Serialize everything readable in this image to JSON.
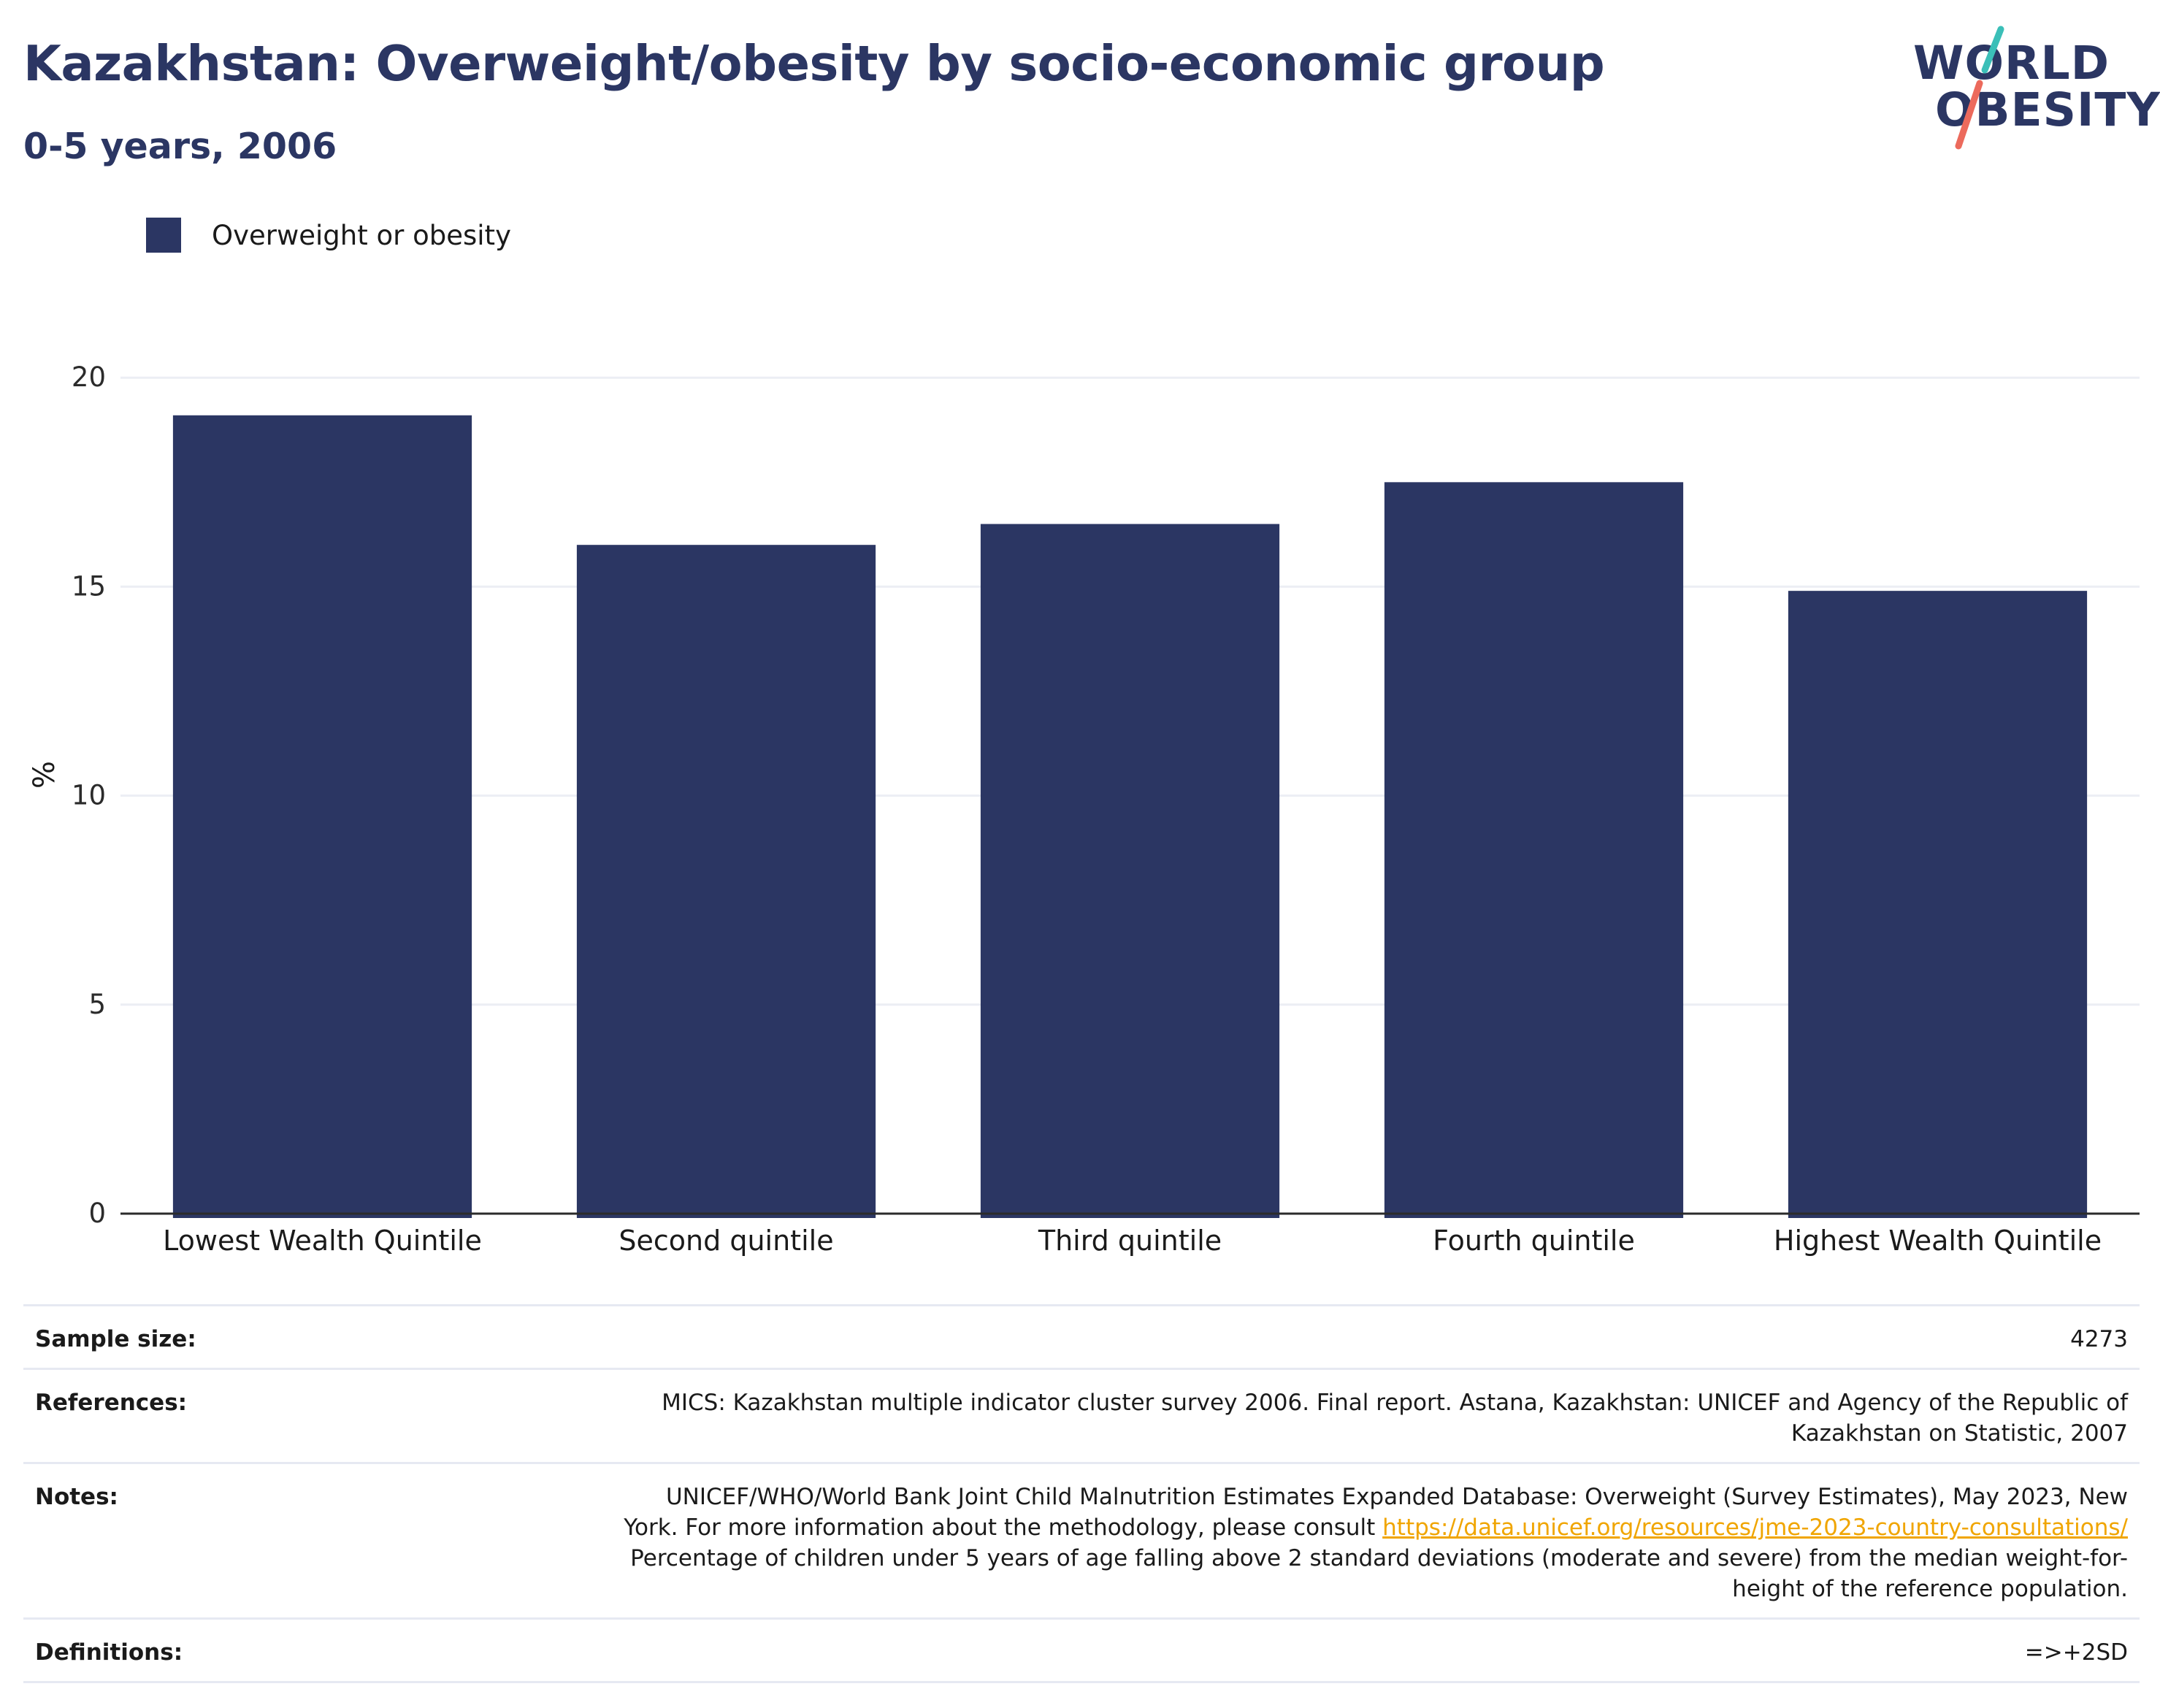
{
  "header": {
    "title": "Kazakhstan: Overweight/obesity by socio-economic group",
    "subtitle": "0-5 years, 2006"
  },
  "logo": {
    "line1": "WORLD",
    "line2": "OBESITY"
  },
  "legend": {
    "label": "Overweight or obesity"
  },
  "chart_data": {
    "type": "bar",
    "categories": [
      "Lowest Wealth Quintile",
      "Second quintile",
      "Third quintile",
      "Fourth quintile",
      "Highest Wealth Quintile"
    ],
    "series": [
      {
        "name": "Overweight or obesity",
        "values": [
          19.1,
          16.0,
          16.5,
          17.5,
          14.9
        ]
      }
    ],
    "ylabel": "%",
    "ylim": [
      0,
      21
    ],
    "yticks": [
      0,
      5,
      10,
      15,
      20
    ],
    "grid": true,
    "legend_position": "top-left",
    "colors": {
      "bar": "#2b3663",
      "grid": "#eceef4",
      "axis": "#2b2b2b"
    }
  },
  "meta": {
    "sample_size_label": "Sample size:",
    "sample_size": "4273",
    "references_label": "References:",
    "references": "MICS: Kazakhstan multiple indicator cluster survey 2006. Final report. Astana, Kazakhstan: UNICEF and Agency of the Republic of Kazakhstan on Statistic, 2007",
    "notes_label": "Notes:",
    "notes_pre": "UNICEF/WHO/World Bank Joint Child Malnutrition Estimates Expanded Database: Overweight (Survey Estimates), May 2023, New York. For more information about the methodology, please consult ",
    "notes_link": "https://data.unicef.org/resources/jme-2023-country-consultations/",
    "notes_post": " Percentage of children under 5 years of age falling above 2 standard deviations (moderate and severe) from the median weight-for-height of the reference population.",
    "definitions_label": "Definitions:",
    "definitions": "=>+2SD"
  },
  "colors": {
    "brand_navy": "#2b3663",
    "logo_teal": "#3bbfb8",
    "logo_coral": "#ec6a5c",
    "link": "#f0a500"
  }
}
